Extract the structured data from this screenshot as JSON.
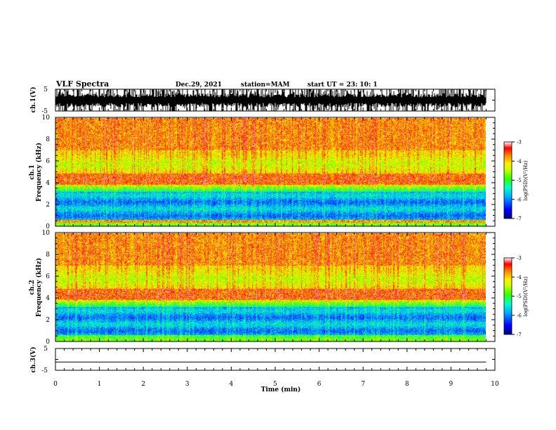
{
  "header": {
    "title": "VLF Spectra",
    "date": "Dec.29, 2021",
    "station": "station=MAM",
    "start": "start  UT  =   23: 10: 1"
  },
  "colors": {
    "scale": [
      "#000080",
      "#0000ff",
      "#00aaff",
      "#00ffcc",
      "#33ff00",
      "#ccff00",
      "#ffee00",
      "#ff8800",
      "#ff0000",
      "#ffffff"
    ]
  },
  "chart_data": [
    {
      "type": "line",
      "name": "ch1-waveform",
      "ylabel": "ch.1(V)",
      "ylim": [
        -5,
        5
      ],
      "yticks": [
        "5",
        "-5"
      ],
      "xlim": [
        0,
        10
      ]
    },
    {
      "type": "heatmap",
      "name": "ch1-spectrogram",
      "ylabel": "ch.1",
      "ylabel2": "Frequency (kHz)",
      "ylim": [
        0,
        10
      ],
      "yticks": [
        "0",
        "2",
        "4",
        "6",
        "8",
        "10"
      ],
      "xlim": [
        0,
        10
      ],
      "data_end_min": 9.8,
      "colorbar": {
        "label": "log(PSD)(V²/Hz)",
        "range": [
          -7,
          -3
        ],
        "ticks": [
          "-3",
          "-4",
          "-5",
          "-6",
          "-7"
        ]
      }
    },
    {
      "type": "heatmap",
      "name": "ch2-spectrogram",
      "ylabel": "ch.2",
      "ylabel2": "Frequency (kHz)",
      "ylim": [
        0,
        10
      ],
      "yticks": [
        "0",
        "2",
        "4",
        "6",
        "8",
        "10"
      ],
      "xlim": [
        0,
        10
      ],
      "data_end_min": 9.8,
      "colorbar": {
        "label": "log(PSD)(V²/Hz)",
        "range": [
          -7,
          -3
        ],
        "ticks": [
          "-3",
          "-4",
          "-5",
          "-6",
          "-7"
        ]
      }
    },
    {
      "type": "line",
      "name": "ch3-waveform",
      "ylabel": "ch.3(V)",
      "ylim": [
        -5,
        5
      ],
      "yticks": [
        "5",
        "-5"
      ],
      "xlim": [
        0,
        10
      ],
      "level": -1.2
    }
  ],
  "xaxis": {
    "label": "Time (min)",
    "ticks": [
      "0",
      "1",
      "2",
      "3",
      "4",
      "5",
      "6",
      "7",
      "8",
      "9",
      "10"
    ]
  }
}
